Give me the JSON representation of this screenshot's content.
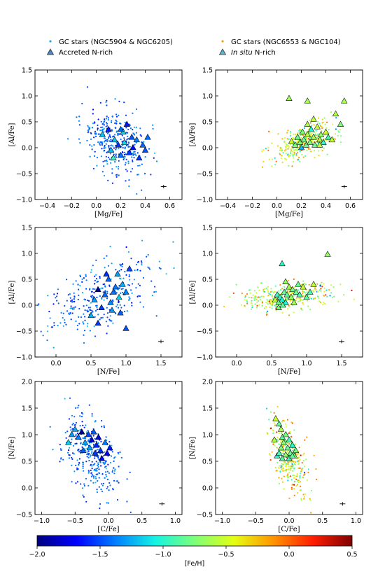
{
  "legend": {
    "left": [
      {
        "label": "GC stars (NGC5904 & NGC6205)",
        "marker": "dot",
        "color": "#29a9e6"
      },
      {
        "label": "Accreted N-rich",
        "marker": "triangle",
        "color": "#4f86c6"
      }
    ],
    "right": [
      {
        "label": "GC stars (NGC6553 & NGC104)",
        "marker": "dot",
        "color": "#e8a020"
      },
      {
        "label_italic": "In situ",
        "label": " N-rich",
        "marker": "triangle",
        "color": "#5db3c8"
      }
    ]
  },
  "colorbar": {
    "label": "[Fe/H]",
    "range": [
      -2.0,
      0.5
    ],
    "ticks": [
      "−2.0",
      "−1.5",
      "−1.0",
      "−0.5",
      "0.0",
      "0.5"
    ],
    "tick_values": [
      -2.0,
      -1.5,
      -1.0,
      -0.5,
      0.0,
      0.5
    ],
    "colormap": [
      "#00007f",
      "#0000ff",
      "#0080ff",
      "#15f3e3",
      "#7cff79",
      "#e4ff13",
      "#ff9400",
      "#ff1e00",
      "#7f0000"
    ]
  },
  "chart_data": [
    {
      "id": "p1",
      "type": "scatter",
      "xlabel": "[Mg/Fe]",
      "ylabel": "[Al/Fe]",
      "xlim": [
        -0.5,
        0.7
      ],
      "ylim": [
        -1.0,
        1.5
      ],
      "xticks": [
        -0.4,
        -0.2,
        0.0,
        0.2,
        0.4,
        0.6
      ],
      "xticklabels": [
        "−0.4",
        "−0.2",
        "0.0",
        "0.2",
        "0.4",
        "0.6"
      ],
      "yticks": [
        -1.0,
        -0.5,
        0.0,
        0.5,
        1.0,
        1.5
      ],
      "yticklabels": [
        "−1.0",
        "−0.5",
        "0.0",
        "0.5",
        "1.0",
        "1.5"
      ],
      "errorbar": {
        "x": 0.55,
        "y": -0.75
      },
      "dots": {
        "seed": 11,
        "n": 330,
        "cx": 0.16,
        "cy": 0.1,
        "sx": 0.13,
        "sy": 0.32,
        "corr": -0.35,
        "feh_mean": -1.45,
        "feh_sd": 0.12
      },
      "triangles": [
        [
          0.05,
          0.25
        ],
        [
          0.1,
          0.35
        ],
        [
          0.12,
          -0.05
        ],
        [
          0.15,
          0.15
        ],
        [
          0.18,
          0.05
        ],
        [
          0.2,
          -0.15
        ],
        [
          0.22,
          0.3
        ],
        [
          0.23,
          0.1
        ],
        [
          0.25,
          0.45
        ],
        [
          0.27,
          -0.1
        ],
        [
          0.29,
          0.2
        ],
        [
          0.3,
          0.0
        ],
        [
          0.33,
          0.15
        ],
        [
          0.35,
          -0.2
        ],
        [
          0.38,
          0.05
        ],
        [
          0.42,
          0.2
        ],
        [
          0.4,
          -0.05
        ],
        [
          0.2,
          0.35
        ],
        [
          0.14,
          -0.2
        ]
      ],
      "tri_feh": -1.45
    },
    {
      "id": "p2",
      "type": "scatter",
      "xlabel": "[Mg/Fe]",
      "ylabel": "[Al/Fe]",
      "xlim": [
        -0.5,
        0.7
      ],
      "ylim": [
        -1.0,
        1.5
      ],
      "xticks": [
        -0.4,
        -0.2,
        0.0,
        0.2,
        0.4,
        0.6
      ],
      "xticklabels": [
        "−0.4",
        "−0.2",
        "0.0",
        "0.2",
        "0.4",
        "0.6"
      ],
      "yticks": [
        -1.0,
        -0.5,
        0.0,
        0.5,
        1.0,
        1.5
      ],
      "yticklabels": [
        "−1.0",
        "−0.5",
        "0.0",
        "0.5",
        "1.0",
        "1.5"
      ],
      "errorbar": {
        "x": 0.55,
        "y": -0.75
      },
      "dots": {
        "seed": 22,
        "n": 330,
        "cx": 0.22,
        "cy": 0.12,
        "sx": 0.12,
        "sy": 0.18,
        "corr": 0.55,
        "feh_mean": -0.5,
        "feh_sd": 0.3
      },
      "triangles": [
        [
          0.12,
          0.12
        ],
        [
          0.15,
          0.05
        ],
        [
          0.17,
          0.2
        ],
        [
          0.19,
          0.1
        ],
        [
          0.21,
          0.3
        ],
        [
          0.22,
          0.15
        ],
        [
          0.24,
          0.05
        ],
        [
          0.25,
          0.25
        ],
        [
          0.27,
          0.1
        ],
        [
          0.28,
          0.35
        ],
        [
          0.3,
          0.2
        ],
        [
          0.31,
          0.05
        ],
        [
          0.33,
          0.4
        ],
        [
          0.35,
          0.15
        ],
        [
          0.36,
          0.25
        ],
        [
          0.38,
          0.1
        ],
        [
          0.4,
          0.3
        ],
        [
          0.42,
          0.2
        ],
        [
          0.45,
          0.15
        ],
        [
          0.3,
          0.55
        ],
        [
          0.25,
          0.45
        ],
        [
          0.1,
          0.95
        ],
        [
          0.25,
          0.9
        ],
        [
          0.48,
          0.65
        ],
        [
          0.52,
          0.45
        ],
        [
          0.55,
          0.9
        ],
        [
          0.35,
          0.05
        ],
        [
          0.2,
          0.0
        ]
      ],
      "tri_feh": -0.75
    },
    {
      "id": "p3",
      "type": "scatter",
      "xlabel": "[N/Fe]",
      "ylabel": "[Al/Fe]",
      "xlim": [
        -0.3,
        1.8
      ],
      "ylim": [
        -1.0,
        1.5
      ],
      "xticks": [
        0.0,
        0.5,
        1.0,
        1.5
      ],
      "xticklabels": [
        "0.0",
        "0.5",
        "1.0",
        "1.5"
      ],
      "yticks": [
        -1.0,
        -0.5,
        0.0,
        0.5,
        1.0,
        1.5
      ],
      "yticklabels": [
        "−1.0",
        "−0.5",
        "0.0",
        "0.5",
        "1.0",
        "1.5"
      ],
      "errorbar": {
        "x": 1.5,
        "y": -0.7
      },
      "dots": {
        "seed": 33,
        "n": 330,
        "cx": 0.65,
        "cy": 0.2,
        "sx": 0.4,
        "sy": 0.38,
        "corr": 0.55,
        "feh_mean": -1.45,
        "feh_sd": 0.14
      },
      "triangles": [
        [
          0.5,
          -0.2
        ],
        [
          0.55,
          0.1
        ],
        [
          0.6,
          0.3
        ],
        [
          0.65,
          -0.05
        ],
        [
          0.7,
          0.2
        ],
        [
          0.75,
          0.5
        ],
        [
          0.78,
          0.05
        ],
        [
          0.8,
          -0.1
        ],
        [
          0.85,
          0.35
        ],
        [
          0.88,
          0.6
        ],
        [
          0.9,
          0.15
        ],
        [
          0.95,
          0.4
        ],
        [
          1.0,
          0.25
        ],
        [
          1.05,
          0.7
        ],
        [
          0.92,
          -0.15
        ],
        [
          1.0,
          -0.45
        ],
        [
          0.6,
          -0.35
        ],
        [
          0.72,
          0.6
        ],
        [
          0.82,
          0.25
        ]
      ],
      "tri_feh": -1.5
    },
    {
      "id": "p4",
      "type": "scatter",
      "xlabel": "[N/Fe]",
      "ylabel": "[Al/Fe]",
      "xlim": [
        -0.3,
        1.8
      ],
      "ylim": [
        -1.0,
        1.5
      ],
      "xticks": [
        0.0,
        0.5,
        1.0,
        1.5
      ],
      "xticklabels": [
        "0.0",
        "0.5",
        "1.0",
        "1.5"
      ],
      "yticks": [
        -1.0,
        -0.5,
        0.0,
        0.5,
        1.0,
        1.5
      ],
      "yticklabels": [
        "−1.0",
        "−0.5",
        "0.0",
        "0.5",
        "1.0",
        "1.5"
      ],
      "errorbar": {
        "x": 1.5,
        "y": -0.7
      },
      "dots": {
        "seed": 44,
        "n": 330,
        "cx": 0.7,
        "cy": 0.15,
        "sx": 0.38,
        "sy": 0.14,
        "corr": 0.3,
        "feh_mean": -0.55,
        "feh_sd": 0.32
      },
      "triangles": [
        [
          0.55,
          0.1
        ],
        [
          0.58,
          0.2
        ],
        [
          0.6,
          0.05
        ],
        [
          0.62,
          0.15
        ],
        [
          0.65,
          0.1
        ],
        [
          0.68,
          0.25
        ],
        [
          0.7,
          0.05
        ],
        [
          0.72,
          0.2
        ],
        [
          0.75,
          0.35
        ],
        [
          0.78,
          0.15
        ],
        [
          0.8,
          0.3
        ],
        [
          0.82,
          0.05
        ],
        [
          0.85,
          0.25
        ],
        [
          0.88,
          0.4
        ],
        [
          0.9,
          0.2
        ],
        [
          0.95,
          0.35
        ],
        [
          1.0,
          0.15
        ],
        [
          1.05,
          0.25
        ],
        [
          1.1,
          0.4
        ],
        [
          0.7,
          0.45
        ],
        [
          0.65,
          0.8
        ],
        [
          1.3,
          0.98
        ],
        [
          0.6,
          -0.05
        ],
        [
          0.66,
          0.0
        ]
      ],
      "tri_feh": -0.8
    },
    {
      "id": "p5",
      "type": "scatter",
      "xlabel": "[C/Fe]",
      "ylabel": "[N/Fe]",
      "xlim": [
        -1.1,
        1.1
      ],
      "ylim": [
        -0.5,
        2.0
      ],
      "xticks": [
        -1.0,
        -0.5,
        0.0,
        0.5,
        1.0
      ],
      "xticklabels": [
        "−1.0",
        "−0.5",
        "0.0",
        "0.5",
        "1.0"
      ],
      "yticks": [
        -0.5,
        0.0,
        0.5,
        1.0,
        1.5,
        2.0
      ],
      "yticklabels": [
        "−0.5",
        "0.0",
        "0.5",
        "1.0",
        "1.5",
        "2.0"
      ],
      "errorbar": {
        "x": 0.8,
        "y": -0.3
      },
      "dots": {
        "seed": 55,
        "n": 330,
        "cx": -0.25,
        "cy": 0.6,
        "sx": 0.22,
        "sy": 0.38,
        "corr": -0.45,
        "feh_mean": -1.45,
        "feh_sd": 0.12
      },
      "triangles": [
        [
          -0.55,
          1.0
        ],
        [
          -0.5,
          1.1
        ],
        [
          -0.45,
          0.95
        ],
        [
          -0.4,
          1.05
        ],
        [
          -0.35,
          0.85
        ],
        [
          -0.3,
          1.0
        ],
        [
          -0.28,
          0.75
        ],
        [
          -0.25,
          0.9
        ],
        [
          -0.2,
          0.65
        ],
        [
          -0.18,
          0.8
        ],
        [
          -0.15,
          0.95
        ],
        [
          -0.12,
          0.7
        ],
        [
          -0.1,
          0.55
        ],
        [
          -0.05,
          0.85
        ],
        [
          -0.02,
          0.65
        ],
        [
          0.02,
          0.75
        ],
        [
          -0.6,
          0.85
        ],
        [
          -0.38,
          0.7
        ],
        [
          -0.22,
          1.05
        ]
      ],
      "tri_feh": -1.55
    },
    {
      "id": "p6",
      "type": "scatter",
      "xlabel": "[C/Fe]",
      "ylabel": "[N/Fe]",
      "xlim": [
        -1.1,
        1.1
      ],
      "ylim": [
        -0.5,
        2.0
      ],
      "xticks": [
        -1.0,
        -0.5,
        0.0,
        0.5,
        1.0
      ],
      "xticklabels": [
        "−1.0",
        "−0.5",
        "0.0",
        "0.5",
        "1.0"
      ],
      "yticks": [
        -0.5,
        0.0,
        0.5,
        1.0,
        1.5,
        2.0
      ],
      "yticklabels": [
        "−0.5",
        "0.0",
        "0.5",
        "1.0",
        "1.5",
        "2.0"
      ],
      "errorbar": {
        "x": 0.8,
        "y": -0.3
      },
      "dots": {
        "seed": 66,
        "n": 330,
        "cx": 0.0,
        "cy": 0.55,
        "sx": 0.14,
        "sy": 0.35,
        "corr": -0.5,
        "feh_mean": -0.5,
        "feh_sd": 0.32
      },
      "triangles": [
        [
          -0.2,
          1.3
        ],
        [
          -0.15,
          1.2
        ],
        [
          -0.12,
          1.1
        ],
        [
          -0.1,
          0.95
        ],
        [
          -0.08,
          0.85
        ],
        [
          -0.05,
          1.0
        ],
        [
          -0.02,
          0.75
        ],
        [
          0.0,
          0.9
        ],
        [
          0.02,
          0.65
        ],
        [
          0.05,
          0.8
        ],
        [
          0.08,
          0.6
        ],
        [
          -0.18,
          0.6
        ],
        [
          -0.15,
          0.65
        ],
        [
          -0.1,
          0.55
        ],
        [
          -0.05,
          0.62
        ],
        [
          0.0,
          0.55
        ],
        [
          0.05,
          0.6
        ],
        [
          -0.12,
          0.75
        ],
        [
          -0.22,
          0.9
        ],
        [
          0.1,
          0.7
        ]
      ],
      "tri_feh": -0.75
    }
  ]
}
